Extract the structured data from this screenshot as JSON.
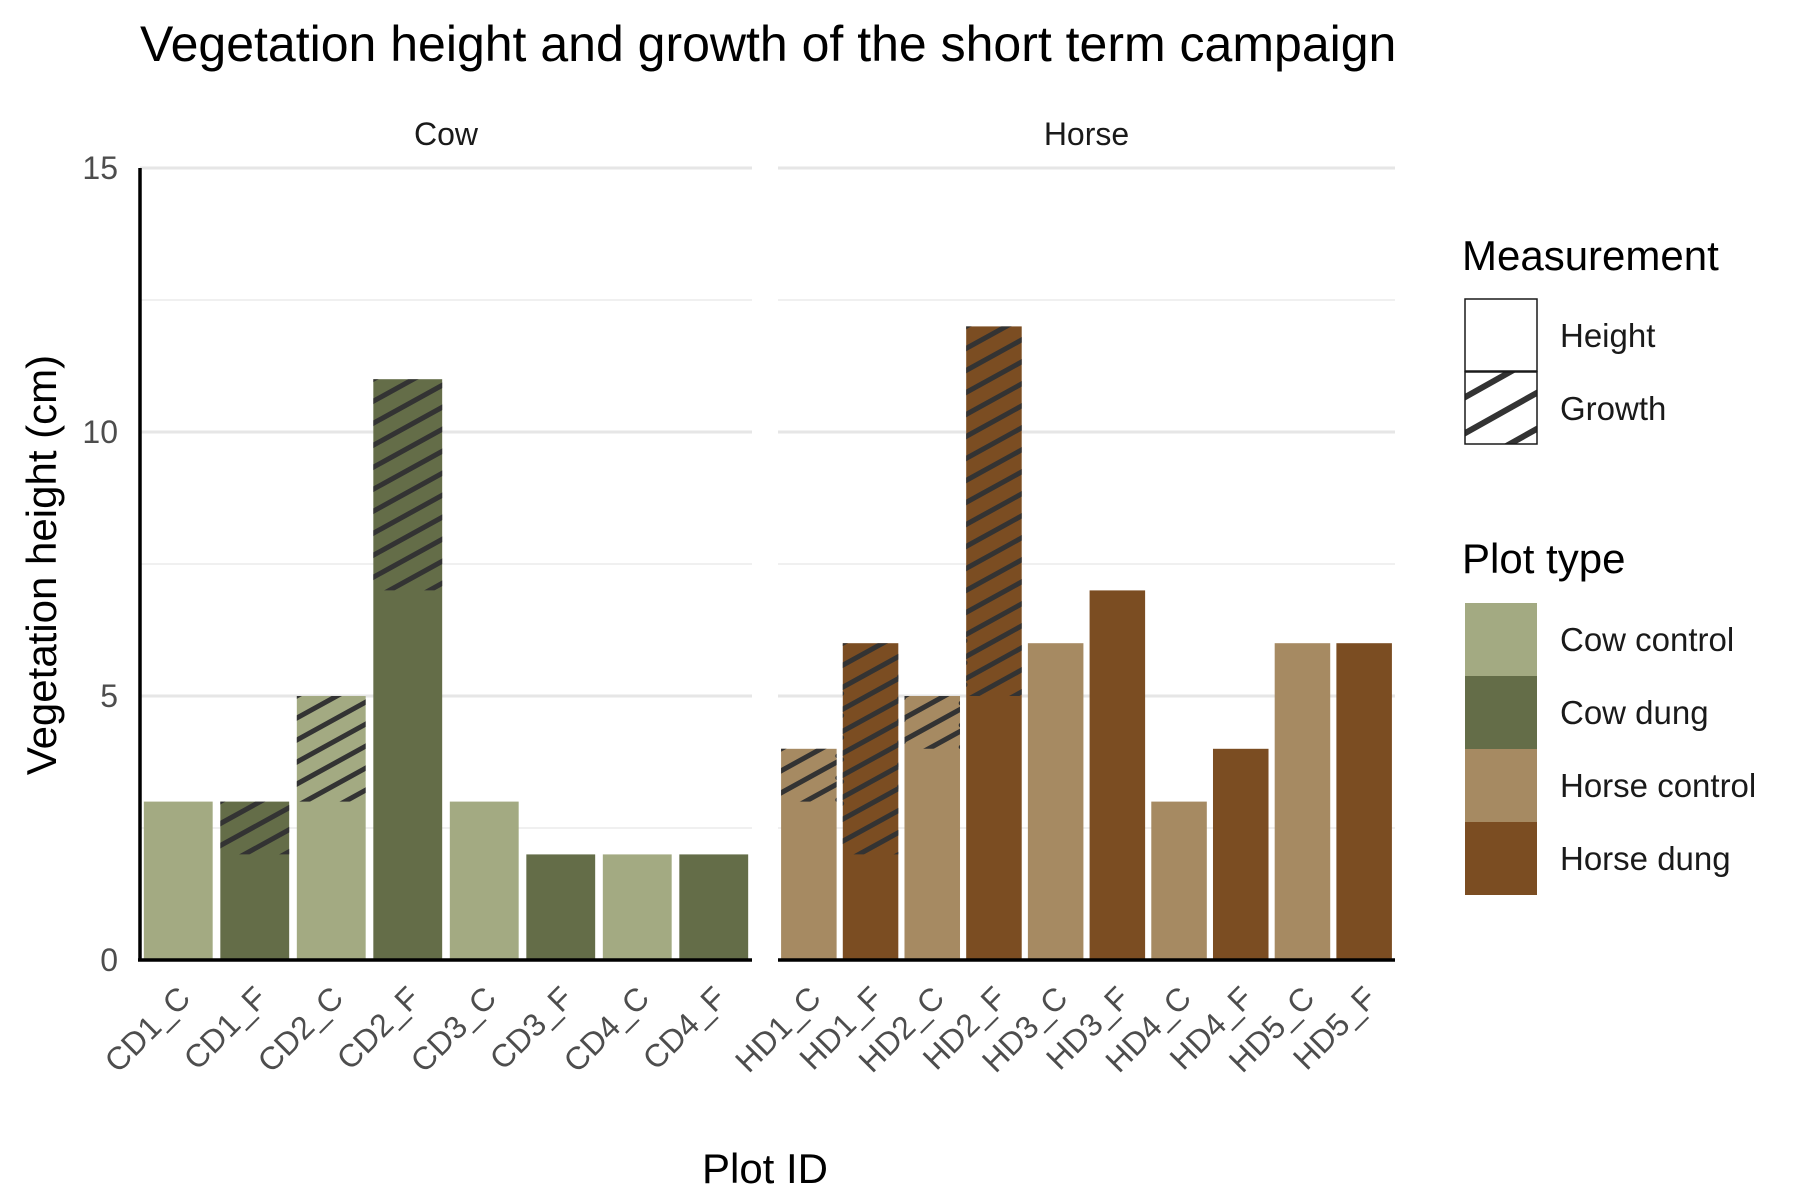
{
  "chart_data": {
    "type": "bar",
    "title": "Vegetation height and growth of the short term campaign",
    "xlabel": "Plot ID",
    "ylabel": "Vegetation height (cm)",
    "ylim": [
      0,
      15
    ],
    "yticks": [
      0,
      5,
      10,
      15
    ],
    "grid": true,
    "legend_position": "right",
    "facets": [
      {
        "name": "Cow",
        "categories": [
          "CD1_C",
          "CD1_F",
          "CD2_C",
          "CD2_F",
          "CD3_C",
          "CD3_F",
          "CD4_C",
          "CD4_F"
        ],
        "plot_type": [
          "Cow control",
          "Cow dung",
          "Cow control",
          "Cow dung",
          "Cow control",
          "Cow dung",
          "Cow control",
          "Cow dung"
        ],
        "height": [
          3,
          3,
          5,
          11,
          3,
          2,
          2,
          2
        ],
        "growth_from": [
          null,
          2,
          3,
          7,
          null,
          null,
          null,
          null
        ]
      },
      {
        "name": "Horse",
        "categories": [
          "HD1_C",
          "HD1_F",
          "HD2_C",
          "HD2_F",
          "HD3_C",
          "HD3_F",
          "HD4_C",
          "HD4_F",
          "HD5_C",
          "HD5_F"
        ],
        "plot_type": [
          "Horse control",
          "Horse dung",
          "Horse control",
          "Horse dung",
          "Horse control",
          "Horse dung",
          "Horse control",
          "Horse dung",
          "Horse control",
          "Horse dung"
        ],
        "height": [
          4,
          6,
          5,
          12,
          6,
          7,
          3,
          4,
          6,
          6
        ],
        "growth_from": [
          3,
          2,
          4,
          5,
          null,
          null,
          null,
          null,
          null,
          null
        ]
      }
    ],
    "legends": [
      {
        "title": "Measurement",
        "entries": [
          {
            "label": "Height",
            "pattern": "none"
          },
          {
            "label": "Growth",
            "pattern": "stripe"
          }
        ]
      },
      {
        "title": "Plot type",
        "entries": [
          {
            "label": "Cow control",
            "color": "#a3aa82"
          },
          {
            "label": "Cow dung",
            "color": "#646d48"
          },
          {
            "label": "Horse control",
            "color": "#a68a62"
          },
          {
            "label": "Horse dung",
            "color": "#7b4d22"
          }
        ]
      }
    ],
    "colors": {
      "Cow control": "#a3aa82",
      "Cow dung": "#646d48",
      "Horse control": "#a68a62",
      "Horse dung": "#7b4d22",
      "stripe": "#333333"
    }
  }
}
